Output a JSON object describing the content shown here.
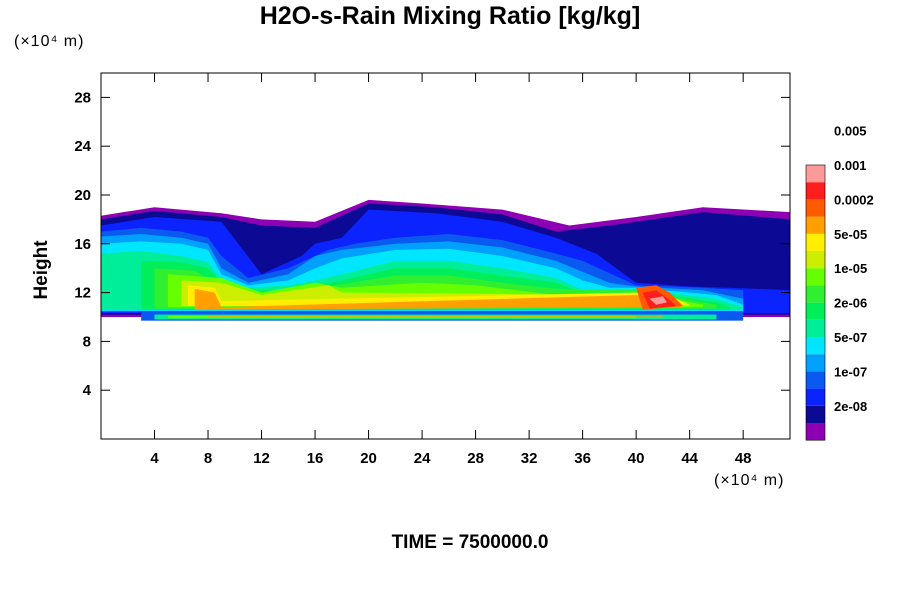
{
  "chart_data": {
    "type": "heatmap",
    "title": "H2O-s-Rain Mixing Ratio [kg/kg]",
    "ylabel": "Height",
    "xlabel": "",
    "x_unit": "(×10⁴ m)",
    "y_unit": "(×10⁴ m)",
    "footer": "TIME = 7500000.0",
    "xlim": [
      0,
      51.5
    ],
    "ylim": [
      0,
      30
    ],
    "x_ticks": [
      "4",
      "8",
      "12",
      "16",
      "20",
      "24",
      "28",
      "32",
      "36",
      "40",
      "44",
      "48"
    ],
    "y_ticks": [
      "4",
      "8",
      "12",
      "16",
      "20",
      "24",
      "28"
    ],
    "x_tick_values": [
      4,
      8,
      12,
      16,
      20,
      24,
      28,
      32,
      36,
      40,
      44,
      48
    ],
    "y_tick_values": [
      4,
      8,
      12,
      16,
      20,
      24,
      28
    ],
    "colorbar": {
      "colors": [
        "#8e00b4",
        "#0c0a94",
        "#0a23ff",
        "#0a5af0",
        "#00a0ff",
        "#00e6ff",
        "#00ee99",
        "#00ee5a",
        "#30ee30",
        "#66ff00",
        "#ccee00",
        "#ffee00",
        "#ffa000",
        "#ff5a00",
        "#ff1e1e",
        "#ff9a9a"
      ],
      "labels": [
        "2e-08",
        "1e-07",
        "5e-07",
        "2e-06",
        "1e-05",
        "5e-05",
        "0.0002",
        "0.001",
        "0.005"
      ]
    },
    "regions": [
      {
        "level": 0,
        "points": [
          [
            0,
            18.3
          ],
          [
            4,
            19
          ],
          [
            9,
            18.5
          ],
          [
            12,
            18
          ],
          [
            16,
            17.8
          ],
          [
            20,
            19.6
          ],
          [
            24,
            19.3
          ],
          [
            30,
            18.8
          ],
          [
            35,
            17.5
          ],
          [
            40,
            18.2
          ],
          [
            45,
            19
          ],
          [
            51.5,
            18.6
          ],
          [
            51.5,
            10
          ],
          [
            0,
            10
          ]
        ]
      },
      {
        "level": 1,
        "points": [
          [
            0,
            18
          ],
          [
            4,
            18.7
          ],
          [
            9,
            18.2
          ],
          [
            12,
            17.5
          ],
          [
            16,
            17.3
          ],
          [
            20,
            19.3
          ],
          [
            25,
            19
          ],
          [
            30,
            18.4
          ],
          [
            34,
            17
          ],
          [
            38,
            17.5
          ],
          [
            40,
            17.8
          ],
          [
            45,
            18.6
          ],
          [
            51.5,
            18
          ],
          [
            51.5,
            10.2
          ],
          [
            0,
            10.2
          ]
        ]
      },
      {
        "level": 2,
        "points": [
          [
            0,
            17.5
          ],
          [
            4,
            18.2
          ],
          [
            9,
            17.8
          ],
          [
            12,
            13.5
          ],
          [
            15,
            15
          ],
          [
            16,
            16
          ],
          [
            18,
            16.5
          ],
          [
            20,
            18.8
          ],
          [
            25,
            18.5
          ],
          [
            30,
            17.8
          ],
          [
            34,
            16.5
          ],
          [
            37,
            15.2
          ],
          [
            40,
            12.8
          ],
          [
            44,
            12.5
          ],
          [
            47,
            12.4
          ],
          [
            51.5,
            12.2
          ],
          [
            51.5,
            10.3
          ],
          [
            0,
            10.3
          ]
        ]
      },
      {
        "level": 3,
        "points": [
          [
            0,
            17
          ],
          [
            3,
            17.3
          ],
          [
            6,
            17
          ],
          [
            8,
            16.5
          ],
          [
            9,
            15
          ],
          [
            11,
            13.2
          ],
          [
            14,
            14
          ],
          [
            17,
            15.5
          ],
          [
            19,
            16
          ],
          [
            22,
            16.5
          ],
          [
            26,
            16.8
          ],
          [
            30,
            16.3
          ],
          [
            34,
            15.2
          ],
          [
            36,
            14.6
          ],
          [
            38,
            13.6
          ],
          [
            40,
            12.6
          ],
          [
            45,
            12.4
          ],
          [
            48,
            12.2
          ],
          [
            48,
            10.4
          ],
          [
            0,
            10.4
          ]
        ]
      },
      {
        "level": 4,
        "points": [
          [
            0,
            16.6
          ],
          [
            3,
            16.8
          ],
          [
            6,
            16.5
          ],
          [
            8,
            16
          ],
          [
            9,
            14
          ],
          [
            11,
            12.8
          ],
          [
            14,
            13.5
          ],
          [
            16,
            15
          ],
          [
            18,
            15.5
          ],
          [
            22,
            16
          ],
          [
            26,
            16.2
          ],
          [
            30,
            15.7
          ],
          [
            34,
            14.6
          ],
          [
            36,
            13.7
          ],
          [
            38,
            12.8
          ],
          [
            40,
            12.5
          ],
          [
            45,
            12.2
          ],
          [
            48,
            11.5
          ],
          [
            48,
            10.5
          ],
          [
            0,
            10.5
          ]
        ]
      },
      {
        "level": 5,
        "points": [
          [
            0,
            16
          ],
          [
            3,
            16.2
          ],
          [
            6,
            16
          ],
          [
            8,
            15.5
          ],
          [
            9,
            13.5
          ],
          [
            11,
            12.6
          ],
          [
            14,
            13
          ],
          [
            16,
            14
          ],
          [
            18,
            14.8
          ],
          [
            22,
            15.5
          ],
          [
            26,
            15.6
          ],
          [
            30,
            15
          ],
          [
            34,
            14
          ],
          [
            36,
            13
          ],
          [
            38,
            12.4
          ],
          [
            40,
            12.4
          ],
          [
            46,
            11.8
          ],
          [
            48,
            11
          ],
          [
            48,
            10.5
          ],
          [
            0,
            10.5
          ]
        ]
      },
      {
        "level": 6,
        "points": [
          [
            0,
            15.2
          ],
          [
            3,
            15.4
          ],
          [
            6,
            15
          ],
          [
            8,
            14.5
          ],
          [
            9,
            13
          ],
          [
            11,
            12.4
          ],
          [
            14,
            12.6
          ],
          [
            16,
            13
          ],
          [
            18,
            13.5
          ],
          [
            22,
            14.6
          ],
          [
            26,
            14.6
          ],
          [
            30,
            14
          ],
          [
            34,
            13.2
          ],
          [
            36,
            12.2
          ],
          [
            40,
            12.3
          ],
          [
            46,
            11.5
          ],
          [
            48,
            10.8
          ],
          [
            48,
            10.6
          ],
          [
            0,
            10.6
          ]
        ]
      },
      {
        "level": 7,
        "points": [
          [
            3,
            14.6
          ],
          [
            6,
            14.5
          ],
          [
            8,
            14
          ],
          [
            9,
            12.8
          ],
          [
            11,
            12.2
          ],
          [
            14,
            12.2
          ],
          [
            16,
            12.6
          ],
          [
            18,
            13
          ],
          [
            22,
            14
          ],
          [
            26,
            14
          ],
          [
            30,
            13.4
          ],
          [
            34,
            12.8
          ],
          [
            36,
            12
          ],
          [
            40,
            12.2
          ],
          [
            46,
            11.2
          ],
          [
            47,
            10.8
          ],
          [
            47,
            10.6
          ],
          [
            3,
            10.6
          ]
        ]
      },
      {
        "level": 8,
        "points": [
          [
            4,
            14
          ],
          [
            7,
            13.8
          ],
          [
            9,
            12.5
          ],
          [
            11,
            12
          ],
          [
            14,
            12
          ],
          [
            16,
            12.3
          ],
          [
            18,
            12.7
          ],
          [
            22,
            13.4
          ],
          [
            26,
            13.4
          ],
          [
            30,
            12.8
          ],
          [
            34,
            12.3
          ],
          [
            40,
            12.2
          ],
          [
            46,
            11
          ],
          [
            46,
            10.7
          ],
          [
            4,
            10.7
          ]
        ]
      },
      {
        "level": 9,
        "points": [
          [
            5,
            13.5
          ],
          [
            9,
            13.2
          ],
          [
            12,
            12
          ],
          [
            16,
            12.8
          ],
          [
            18,
            12.4
          ],
          [
            24,
            12.8
          ],
          [
            28,
            12.6
          ],
          [
            34,
            11.8
          ],
          [
            40,
            12
          ],
          [
            45,
            11
          ],
          [
            45,
            10.8
          ],
          [
            5,
            10.8
          ]
        ]
      },
      {
        "level": 10,
        "points": [
          [
            6,
            13
          ],
          [
            9,
            12.8
          ],
          [
            12,
            11.8
          ],
          [
            17,
            12.6
          ],
          [
            18,
            12
          ],
          [
            40,
            11.8
          ],
          [
            44,
            11
          ],
          [
            44,
            10.9
          ],
          [
            6,
            10.9
          ]
        ]
      },
      {
        "level": 11,
        "points": [
          [
            6.5,
            12.6
          ],
          [
            8.5,
            12.4
          ],
          [
            9,
            11.3
          ],
          [
            40,
            12
          ],
          [
            43,
            11.5
          ],
          [
            44,
            11
          ],
          [
            6.5,
            10.9
          ]
        ]
      },
      {
        "level": 12,
        "points": [
          [
            7,
            12.3
          ],
          [
            8.5,
            12
          ],
          [
            9,
            10.8
          ],
          [
            40,
            11.8
          ],
          [
            42.5,
            11.6
          ],
          [
            43.5,
            10.8
          ],
          [
            7,
            10.6
          ]
        ]
      },
      {
        "level": 13,
        "points": [
          [
            40,
            12.4
          ],
          [
            41.5,
            12.6
          ],
          [
            42.5,
            12
          ],
          [
            43.5,
            10.9
          ],
          [
            40.5,
            10.6
          ]
        ]
      },
      {
        "level": 14,
        "points": [
          [
            40.5,
            12
          ],
          [
            41.5,
            12.2
          ],
          [
            42.5,
            11.4
          ],
          [
            43,
            10.9
          ],
          [
            41,
            10.7
          ]
        ]
      },
      {
        "level": 15,
        "points": [
          [
            41,
            11.5
          ],
          [
            42,
            11.7
          ],
          [
            42.3,
            11.2
          ],
          [
            41.5,
            11
          ]
        ]
      }
    ],
    "bands": [
      {
        "level": 3,
        "x": [
          3,
          48
        ],
        "y": [
          9.7,
          10.4
        ]
      },
      {
        "level": 6,
        "x": [
          4,
          46
        ],
        "y": [
          9.8,
          10.2
        ]
      },
      {
        "level": 9,
        "x": [
          5,
          40
        ],
        "y": [
          9.9,
          10.1
        ]
      },
      {
        "level": 12,
        "x": [
          8,
          42
        ],
        "y": [
          9.95,
          10.05
        ]
      }
    ]
  }
}
